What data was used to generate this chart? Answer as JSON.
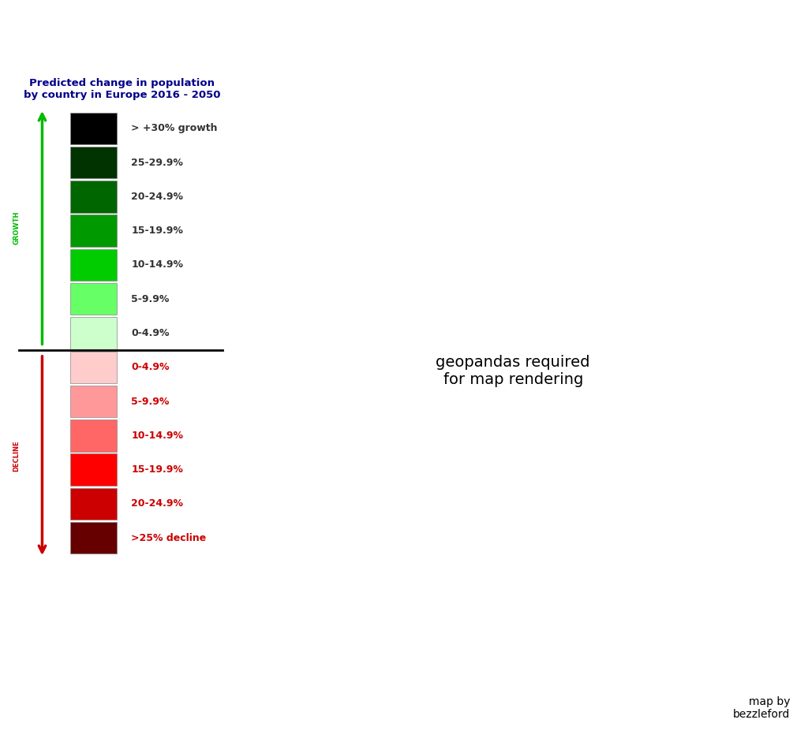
{
  "title": "Predicted change in population\nby country in Europe 2016 - 2050",
  "credit": "map by\nbezzleford",
  "background_color": "#ffffff",
  "colors": {
    "gt30_growth": "#000000",
    "25_29": "#003300",
    "20_24": "#006600",
    "15_19": "#009900",
    "10_14": "#00cc00",
    "5_9": "#66ff66",
    "0_4": "#ccffcc",
    "decline_0_4": "#ffcccc",
    "decline_5_9": "#ff9999",
    "decline_10_14": "#ff6666",
    "decline_15_19": "#ff0000",
    "decline_20_24": "#cc0000",
    "decline_25": "#660000",
    "no_data": "#808080"
  },
  "country_colors": {
    "Iceland": "#009900",
    "Norway": "#003300",
    "Sweden": "#009900",
    "Finland": "#66ff66",
    "Denmark": "#00cc00",
    "United Kingdom": "#00cc00",
    "Ireland": "#006600",
    "France": "#00cc00",
    "Luxembourg": "#000000",
    "Belgium": "#ff9999",
    "Netherlands": "#ff9999",
    "Switzerland": "#ff9999",
    "Austria": "#ff9999",
    "Germany": "#ffcccc",
    "Poland": "#ff9999",
    "Czech Republic": "#ffcccc",
    "Czechia": "#ffcccc",
    "Slovakia": "#ffcccc",
    "Hungary": "#ff6666",
    "Slovenia": "#ff9999",
    "Croatia": "#ff0000",
    "Bosnia and Herz.": "#ff0000",
    "Serbia": "#808080",
    "Montenegro": "#808080",
    "Albania": "#808080",
    "Macedonia": "#808080",
    "N. Macedonia": "#808080",
    "Kosovo": "#808080",
    "Romania": "#ff0000",
    "Bulgaria": "#660000",
    "Moldova": "#cc0000",
    "Ukraine": "#ff0000",
    "Belarus": "#ff9999",
    "Lithuania": "#ff0000",
    "Latvia": "#ff0000",
    "Estonia": "#ff9999",
    "Russia": "#ff9999",
    "Spain": "#ffcccc",
    "Portugal": "#ff9999",
    "Italy": "#ffcccc",
    "Greece": "#ff9999",
    "Cyprus": "#808080",
    "Malta": "#808080",
    "Turkey": "#808080",
    "Kazakhstan": "#808080",
    "Azerbaijan": "#808080",
    "Georgia": "#808080",
    "Armenia": "#808080",
    "Andorra": "#ffcccc",
    "San Marino": "#ffcccc",
    "Liechtenstein": "#ff9999",
    "Monaco": "#ff9999"
  },
  "map_extent": [
    -25,
    45,
    34,
    72
  ],
  "figsize": [
    10.24,
    9.41
  ],
  "dpi": 100
}
